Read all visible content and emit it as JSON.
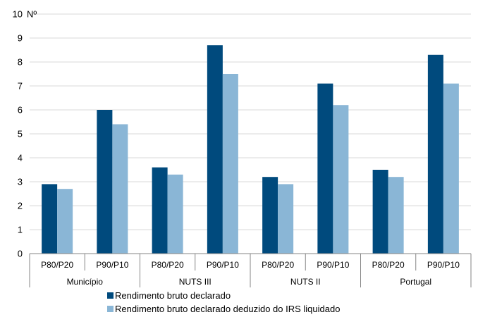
{
  "chart_data": {
    "type": "bar",
    "y_unit_label": "Nº",
    "ylim": [
      0,
      10
    ],
    "y_ticks": [
      0,
      1,
      2,
      3,
      4,
      5,
      6,
      7,
      8,
      9,
      10
    ],
    "grid": true,
    "legend_position": "bottom",
    "groups": [
      "Município",
      "NUTS III",
      "NUTS II",
      "Portugal"
    ],
    "subcategories": [
      "P80/P20",
      "P90/P10"
    ],
    "categories": [
      "P80/P20",
      "P90/P10",
      "P80/P20",
      "P90/P10",
      "P80/P20",
      "P90/P10",
      "P80/P20",
      "P90/P10"
    ],
    "series": [
      {
        "name": "Rendimento bruto declarado",
        "color": "#004A7D",
        "values": [
          2.9,
          6.0,
          3.6,
          8.7,
          3.2,
          7.1,
          3.5,
          8.3
        ]
      },
      {
        "name": "Rendimento bruto declarado deduzido do IRS liquidado",
        "color": "#8AB6D6",
        "values": [
          2.7,
          5.4,
          3.3,
          7.5,
          2.9,
          6.2,
          3.2,
          7.1
        ]
      }
    ]
  }
}
